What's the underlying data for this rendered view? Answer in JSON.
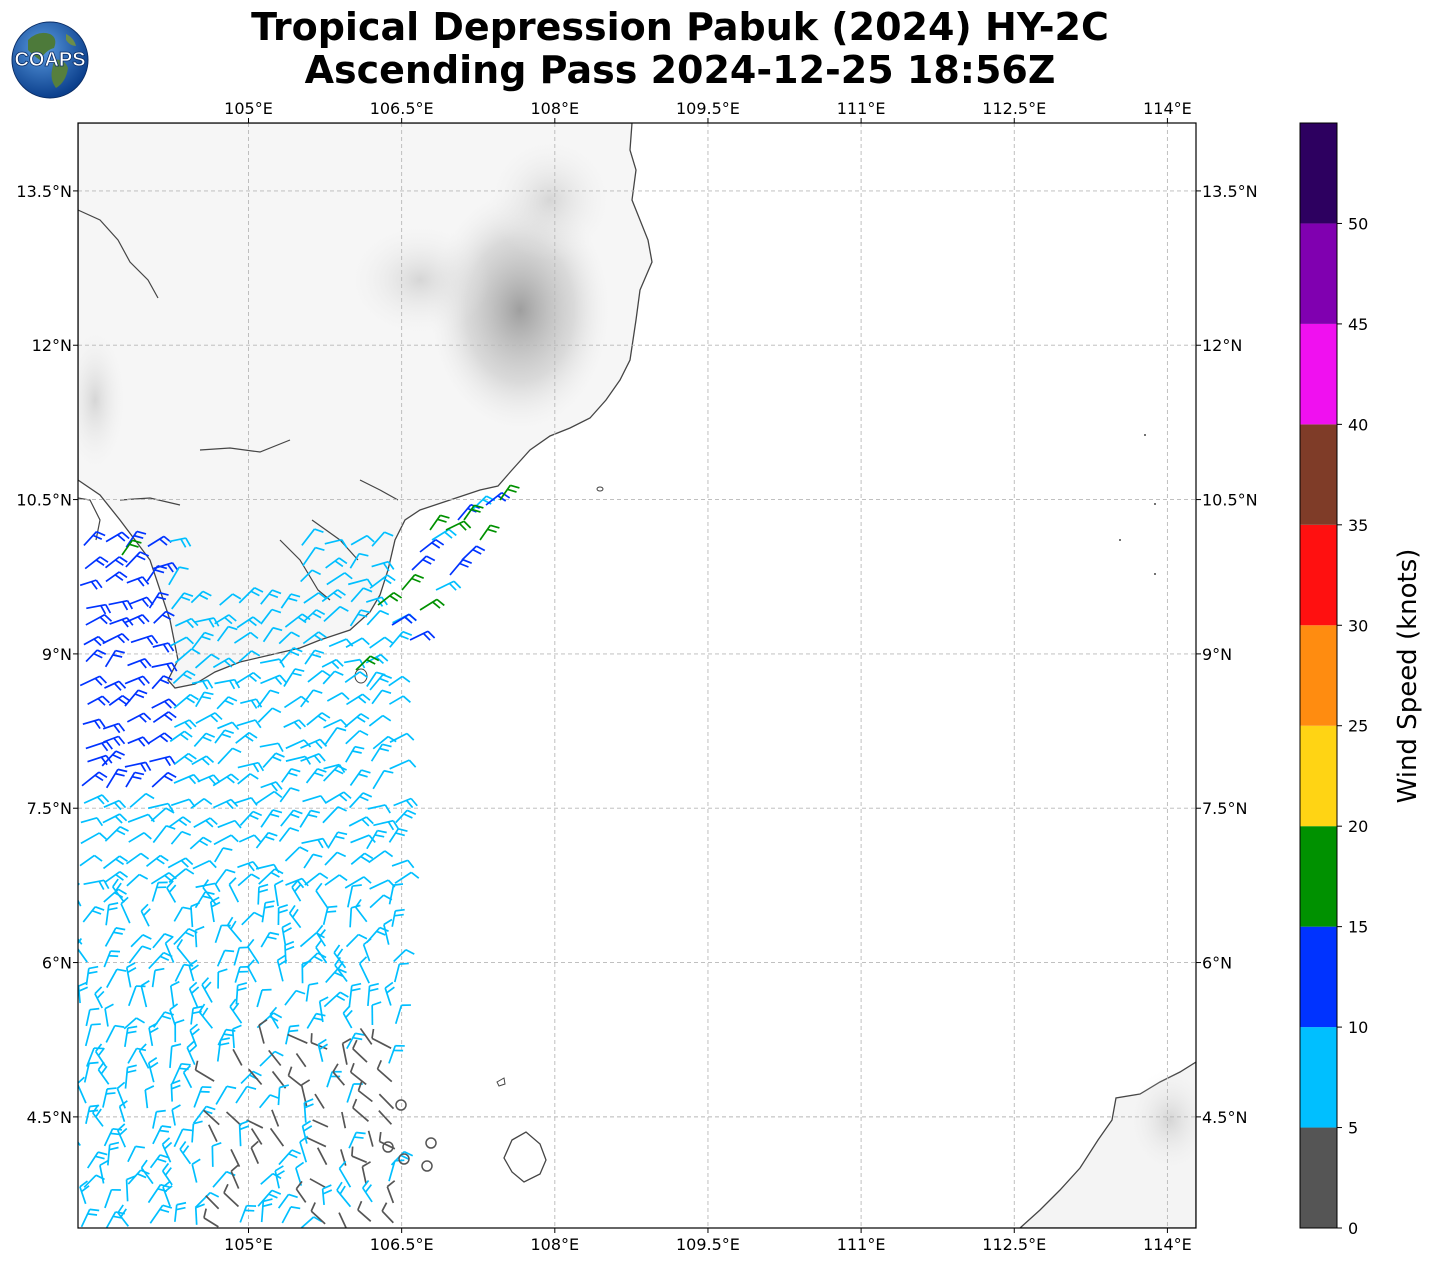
{
  "title": {
    "line1": "Tropical Depression Pabuk (2024) HY-2C",
    "line2": "Ascending Pass 2024-12-25 18:56Z"
  },
  "logo": {
    "text": "COAPS",
    "icon": "globe-logo-icon"
  },
  "map": {
    "lon_range": [
      103.33,
      114.28
    ],
    "lat_range": [
      3.42,
      14.16
    ],
    "lon_ticks": [
      "105°E",
      "106.5°E",
      "108°E",
      "109.5°E",
      "111°E",
      "112.5°E",
      "114°E"
    ],
    "lat_ticks": [
      "13.5°N",
      "12°N",
      "10.5°N",
      "9°N",
      "7.5°N",
      "6°N",
      "4.5°N"
    ],
    "grid": "dashed",
    "land_color": "#f4f4f4",
    "coast_color": "#444444"
  },
  "colorbar": {
    "label": "Wind Speed (knots)",
    "ticks": [
      "0",
      "5",
      "10",
      "15",
      "20",
      "25",
      "30",
      "35",
      "40",
      "45",
      "50"
    ],
    "bins": [
      {
        "from": 0,
        "to": 5,
        "color": "#555555"
      },
      {
        "from": 5,
        "to": 10,
        "color": "#00bfff"
      },
      {
        "from": 10,
        "to": 15,
        "color": "#0033ff"
      },
      {
        "from": 15,
        "to": 20,
        "color": "#009100"
      },
      {
        "from": 20,
        "to": 25,
        "color": "#ffd414"
      },
      {
        "from": 25,
        "to": 30,
        "color": "#ff8c10"
      },
      {
        "from": 30,
        "to": 35,
        "color": "#ff1010"
      },
      {
        "from": 35,
        "to": 40,
        "color": "#7f3c28"
      },
      {
        "from": 40,
        "to": 45,
        "color": "#f010f0"
      },
      {
        "from": 45,
        "to": 50,
        "color": "#8000b0"
      },
      {
        "from": 50,
        "to": 55,
        "color": "#2d0060"
      }
    ]
  },
  "wind_barbs_palette": {
    "calm": "#555555",
    "light": "#00bfff",
    "moderate": "#0033ff",
    "fresh": "#009100"
  }
}
